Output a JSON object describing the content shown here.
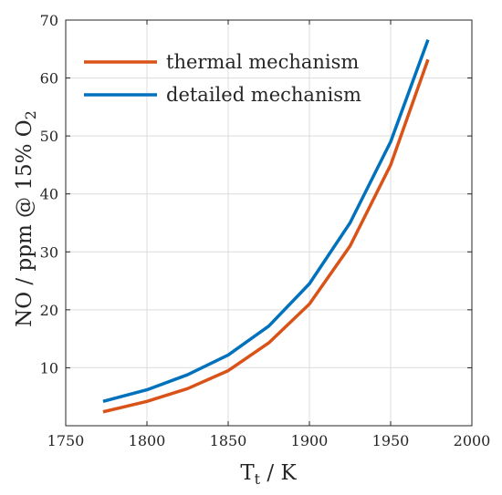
{
  "chart_data": {
    "type": "line",
    "xlabel": "T",
    "xlabel_sub": "t",
    "xlabel_unit": " / K",
    "ylabel": "NO / ppm @ 15% O",
    "ylabel_sub": "2",
    "xlim": [
      1750,
      2000
    ],
    "ylim": [
      0,
      70
    ],
    "xticks": [
      1750,
      1800,
      1850,
      1900,
      1950,
      2000
    ],
    "yticks": [
      10,
      20,
      30,
      40,
      50,
      60,
      70
    ],
    "grid": true,
    "legend_position": "top-left",
    "series": [
      {
        "name": "thermal mechanism",
        "color": "#d95319",
        "x": [
          1773,
          1800,
          1825,
          1850,
          1875,
          1900,
          1925,
          1950,
          1973
        ],
        "y": [
          2.4,
          4.2,
          6.4,
          9.5,
          14.3,
          21.0,
          31.0,
          45.0,
          63.2
        ]
      },
      {
        "name": "detailed mechanism",
        "color": "#0072bd",
        "x": [
          1773,
          1800,
          1825,
          1850,
          1875,
          1900,
          1925,
          1950,
          1973
        ],
        "y": [
          4.2,
          6.2,
          8.8,
          12.2,
          17.2,
          24.5,
          35.0,
          49.0,
          66.6
        ]
      }
    ]
  }
}
